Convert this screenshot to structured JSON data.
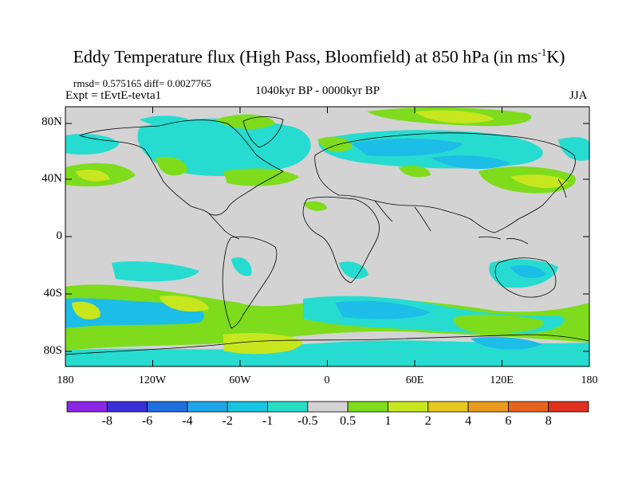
{
  "title": {
    "main": "Eddy Temperature flux (High Pass, Bloomfield) at 850 hPa (in ms",
    "superscript": "-1",
    "suffix": "K)"
  },
  "stats": "rmsd= 0.575165 diff= 0.0027765",
  "experiment": "Expt = tEvtE-tevta1",
  "period": "1040kyr BP - 0000kyr BP",
  "season": "JJA",
  "lat_labels": [
    "80N",
    "40N",
    "0",
    "40S",
    "80S"
  ],
  "lon_labels": [
    "180",
    "120W",
    "60W",
    "0",
    "60E",
    "120E",
    "180"
  ],
  "colorbar": {
    "labels": [
      "-8",
      "-6",
      "-4",
      "-2",
      "-1",
      "-0.5",
      "0.5",
      "1",
      "2",
      "4",
      "6",
      "8"
    ],
    "colors": [
      "#8c26e6",
      "#3a2fd6",
      "#1f6fe0",
      "#1fa6e6",
      "#16c6e0",
      "#29dcc8",
      "#d3d3d3",
      "#7edc1c",
      "#c8e61e",
      "#e6c81e",
      "#e89a1c",
      "#e8641e",
      "#e0301e"
    ]
  },
  "colors": {
    "land_background": "#d3d3d3",
    "neg_strong": "#1f96e0",
    "neg_mid": "#1cbde6",
    "neg_weak": "#26dcd0",
    "pos_weak": "#7edc1c",
    "pos_mid": "#c8e61e",
    "pos_strong": "#e6c81e"
  }
}
